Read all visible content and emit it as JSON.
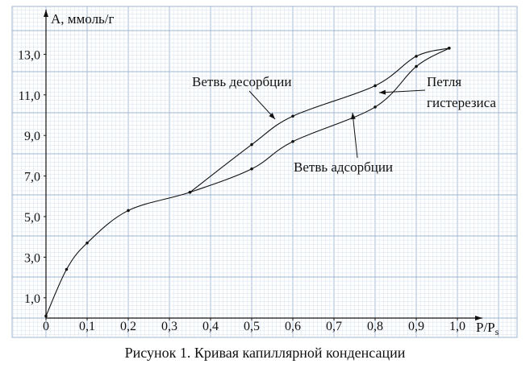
{
  "caption": "Рисунок 1. Кривая капиллярной конденсации",
  "colors": {
    "paper": "#ffffff",
    "grid_minor": "#d3e0ee",
    "grid_major": "#9fb6d2",
    "ink": "#111111"
  },
  "chart_data": {
    "type": "line",
    "title": "",
    "ylabel": "А, ммоль/г",
    "xlabel": "P/Ps",
    "xlim": [
      0,
      1.05
    ],
    "ylim": [
      0,
      14.0
    ],
    "grid": "millimetre graph paper",
    "x_ticks": [
      "0",
      "0,1",
      "0,2",
      "0,3",
      "0,4",
      "0,5",
      "0,6",
      "0,7",
      "0,8",
      "0,9",
      "1,0"
    ],
    "y_ticks": [
      "1,0",
      "3,0",
      "5,0",
      "7,0",
      "9,0",
      "11,0",
      "13,0"
    ],
    "series": [
      {
        "id": "adsorption",
        "x": [
          0,
          0.05,
          0.1,
          0.2,
          0.35,
          0.5,
          0.6,
          0.8,
          0.9,
          0.98
        ],
        "y": [
          0.1,
          2.4,
          3.7,
          5.3,
          6.2,
          7.35,
          8.7,
          10.4,
          12.4,
          13.3
        ]
      },
      {
        "id": "desorption",
        "x": [
          0.35,
          0.5,
          0.6,
          0.8,
          0.9,
          0.98
        ],
        "y": [
          6.2,
          8.55,
          9.95,
          11.45,
          12.9,
          13.3
        ]
      }
    ],
    "annotations": [
      {
        "id": "desorption-branch",
        "text": "Ветвь десорбции"
      },
      {
        "id": "adsorption-branch",
        "text": "Ветвь адсорбции"
      },
      {
        "id": "hysteresis-loop",
        "lines": [
          "Петля",
          "гистерезиса"
        ]
      }
    ]
  }
}
